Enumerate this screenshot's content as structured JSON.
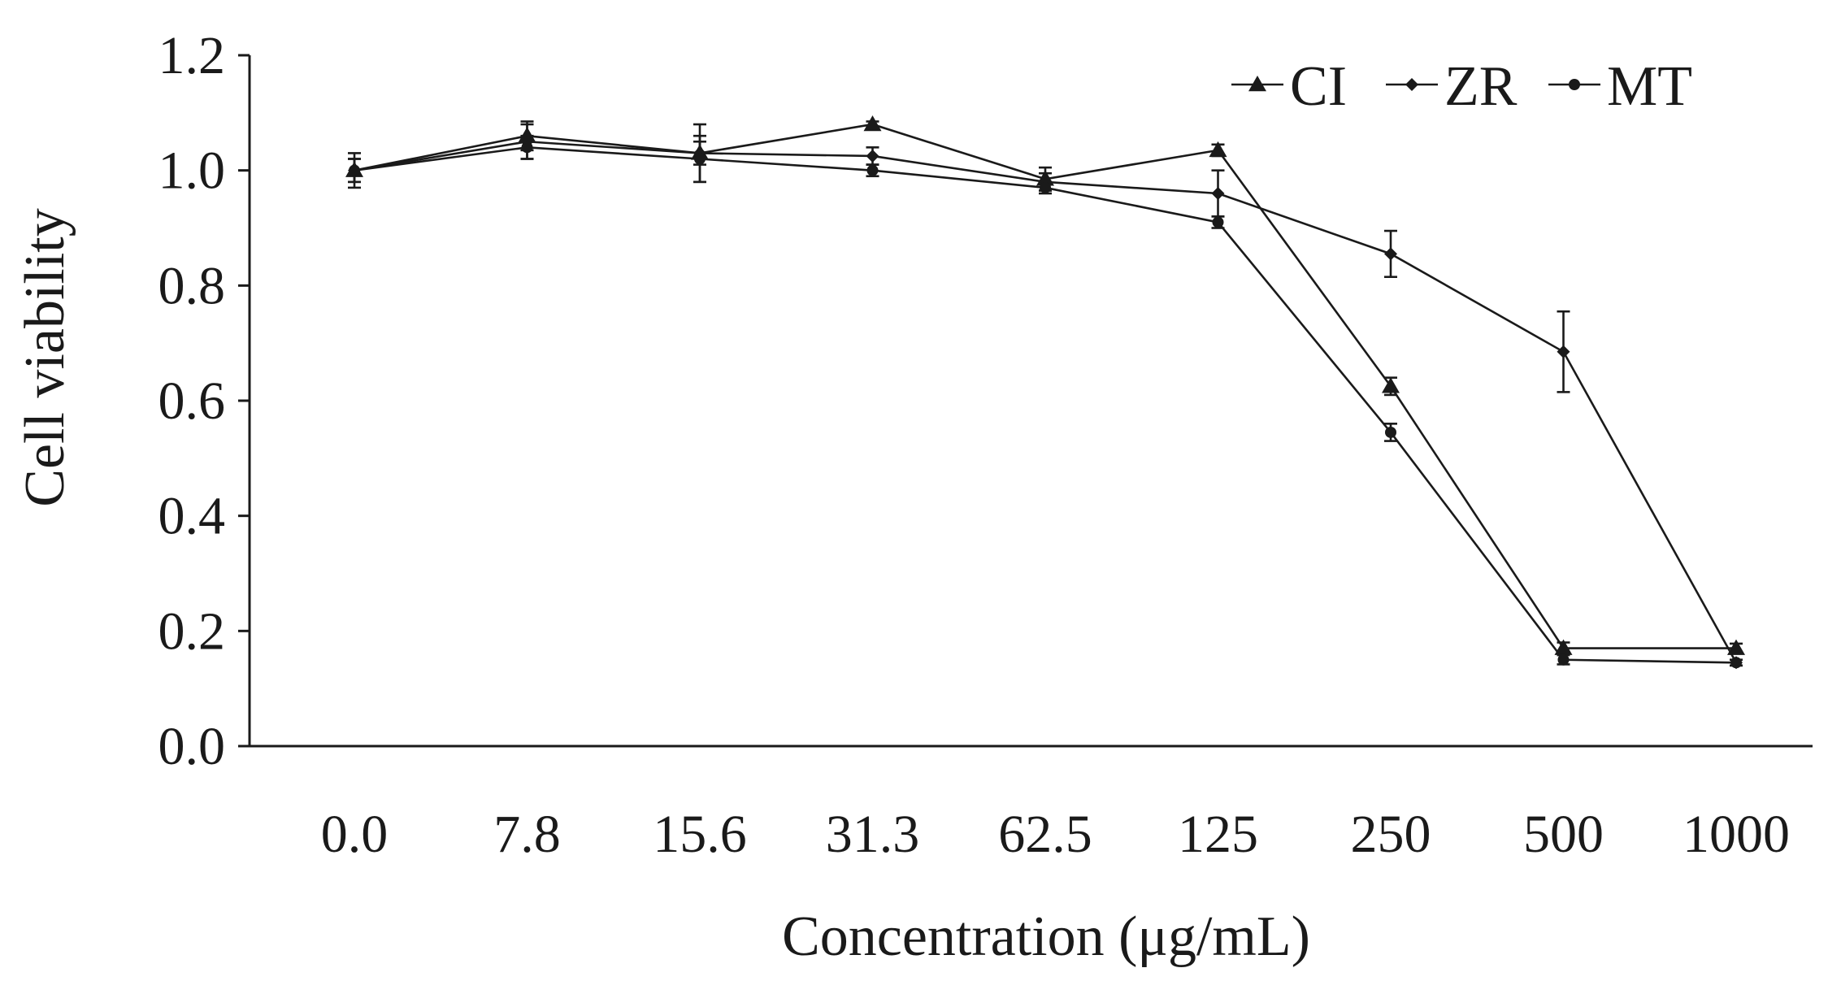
{
  "chart_data": {
    "type": "line",
    "title": "",
    "xlabel": "Concentration (μg/mL)",
    "ylabel": "Cell viability",
    "categories": [
      "0.0",
      "7.8",
      "15.6",
      "31.3",
      "62.5",
      "125",
      "250",
      "500",
      "1000"
    ],
    "ylim": [
      0.0,
      1.2
    ],
    "yticks": [
      "0.0",
      "0.2",
      "0.4",
      "0.6",
      "0.8",
      "1.0",
      "1.2"
    ],
    "grid": false,
    "legend_position": "top-right",
    "series": [
      {
        "name": "CI",
        "marker": "triangle",
        "values": [
          1.0,
          1.06,
          1.03,
          1.08,
          0.985,
          1.035,
          0.625,
          0.17,
          0.17
        ],
        "errors": [
          0.02,
          0.025,
          0.02,
          0.005,
          0.02,
          0.01,
          0.015,
          0.01,
          0.008
        ]
      },
      {
        "name": "ZR",
        "marker": "diamond",
        "values": [
          1.0,
          1.05,
          1.03,
          1.025,
          0.98,
          0.96,
          0.855,
          0.685,
          0.145
        ],
        "errors": [
          0.03,
          0.03,
          0.05,
          0.015,
          0.015,
          0.04,
          0.04,
          0.07,
          0.005
        ]
      },
      {
        "name": "MT",
        "marker": "circle",
        "values": [
          1.0,
          1.04,
          1.02,
          1.0,
          0.97,
          0.91,
          0.545,
          0.15,
          0.145
        ],
        "errors": [
          0.02,
          0.02,
          0.04,
          0.01,
          0.01,
          0.01,
          0.015,
          0.008,
          0.005
        ]
      }
    ]
  }
}
